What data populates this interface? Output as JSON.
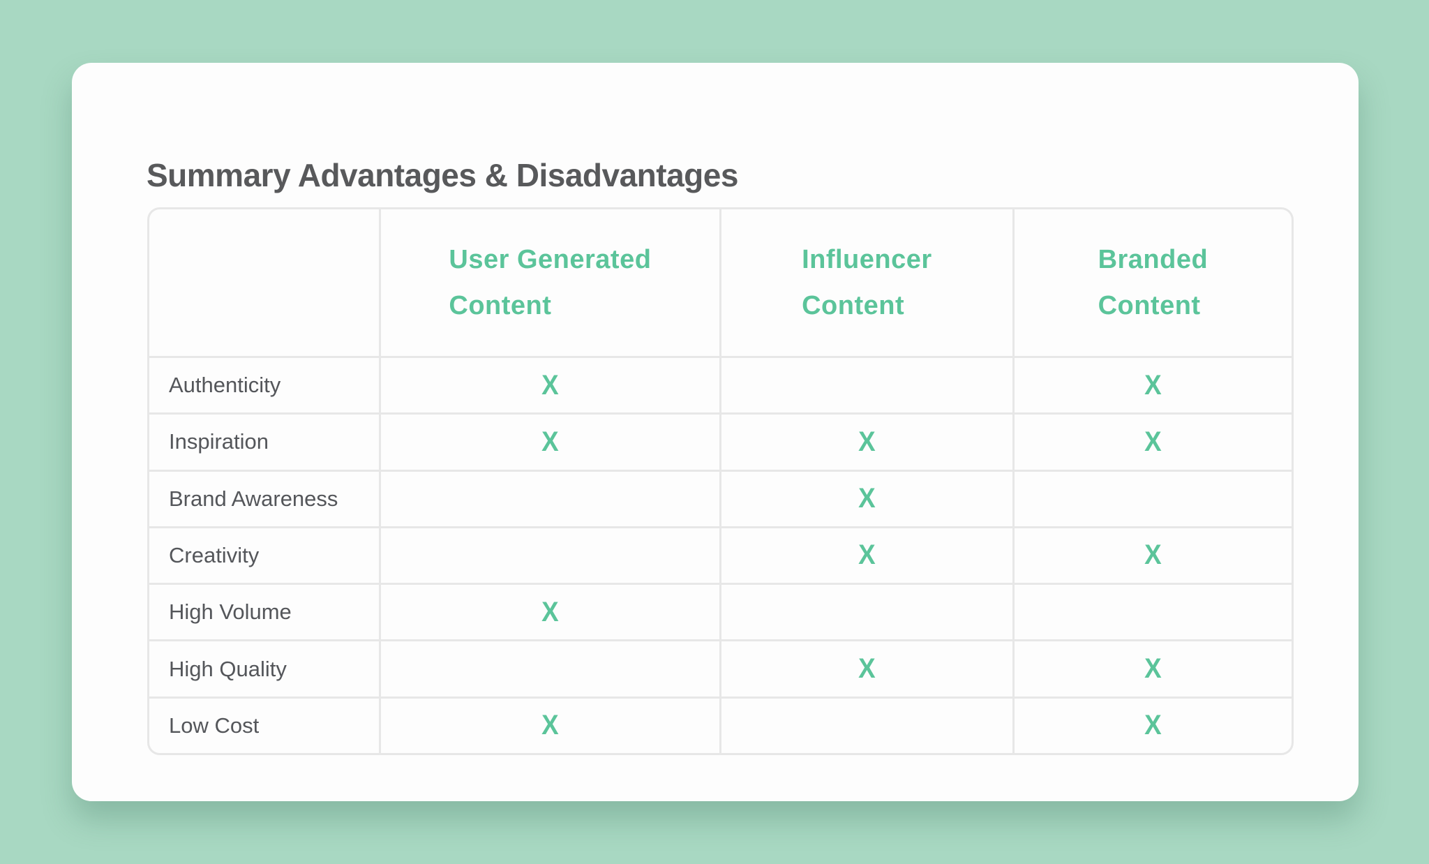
{
  "theme": {
    "background_color": "#a8d8c2",
    "card_color": "#fdfdfd",
    "grid_color": "#e7e7e7",
    "accent_green": "#5bc49a",
    "title_color": "#58595b",
    "label_color": "#54565a"
  },
  "card": {
    "title": "Summary Advantages & Disadvantages"
  },
  "table": {
    "mark": "X",
    "columns": [
      {
        "label": "User Generated Content",
        "lines": [
          "User Generated",
          "Content"
        ]
      },
      {
        "label": "Influencer Content",
        "lines": [
          "Influencer",
          "Content"
        ]
      },
      {
        "label": "Branded Content",
        "lines": [
          "Branded",
          "Content"
        ]
      }
    ],
    "rows": [
      {
        "label": "Authenticity",
        "marks": [
          true,
          false,
          true
        ]
      },
      {
        "label": "Inspiration",
        "marks": [
          true,
          true,
          true
        ]
      },
      {
        "label": "Brand Awareness",
        "marks": [
          false,
          true,
          false
        ]
      },
      {
        "label": "Creativity",
        "marks": [
          false,
          true,
          true
        ]
      },
      {
        "label": "High Volume",
        "marks": [
          true,
          false,
          false
        ]
      },
      {
        "label": "High Quality",
        "marks": [
          false,
          true,
          true
        ]
      },
      {
        "label": "Low Cost",
        "marks": [
          true,
          false,
          true
        ]
      }
    ]
  },
  "chart_data": {
    "type": "table",
    "title": "Summary Advantages & Disadvantages",
    "columns": [
      "",
      "User Generated Content",
      "Influencer Content",
      "Branded Content"
    ],
    "rows": [
      [
        "Authenticity",
        "X",
        "",
        "X"
      ],
      [
        "Inspiration",
        "X",
        "X",
        "X"
      ],
      [
        "Brand Awareness",
        "",
        "X",
        ""
      ],
      [
        "Creativity",
        "",
        "X",
        "X"
      ],
      [
        "High Volume",
        "X",
        "",
        ""
      ],
      [
        "High Quality",
        "",
        "X",
        "X"
      ],
      [
        "Low Cost",
        "X",
        "",
        "X"
      ]
    ],
    "legend_position": "none",
    "grid": true
  }
}
